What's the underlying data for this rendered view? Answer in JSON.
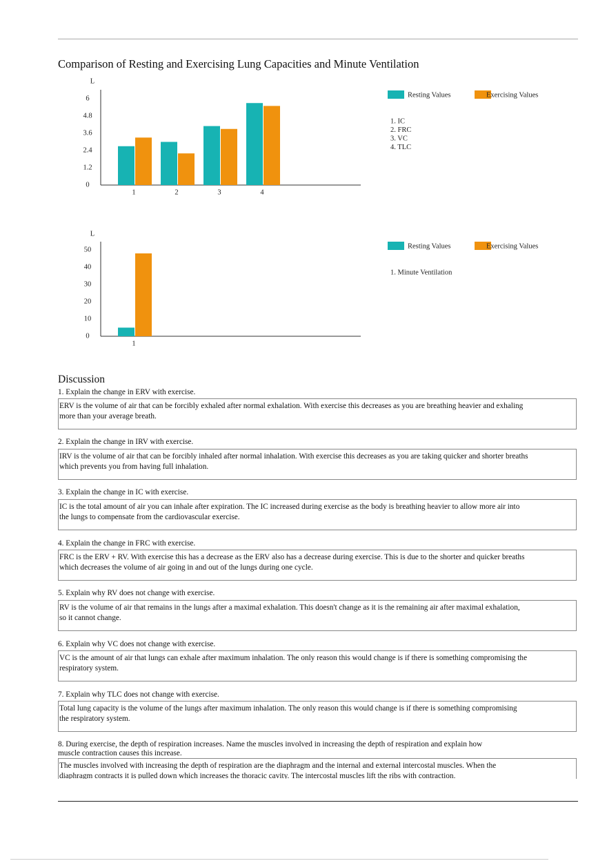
{
  "title": "Comparison of Resting and Exercising Lung Capacities and Minute Ventilation",
  "chart_data": [
    {
      "type": "bar",
      "y_label": "L",
      "categories": [
        "1",
        "2",
        "3",
        "4"
      ],
      "series": [
        {
          "name": "Resting Values",
          "color": "#17b3b3",
          "values": [
            2.7,
            3.0,
            4.1,
            5.7
          ]
        },
        {
          "name": "Exercising Values",
          "color": "#f0920e",
          "values": [
            3.3,
            2.2,
            3.9,
            5.5
          ]
        }
      ],
      "ylim": [
        0,
        6
      ],
      "yticks": [
        0,
        1.2,
        2.4,
        3.6,
        4.8,
        6
      ],
      "key": [
        "1. IC",
        "2. FRC",
        "3. VC",
        "4. TLC"
      ],
      "legend": "top right"
    },
    {
      "type": "bar",
      "y_label": "L",
      "categories": [
        "1"
      ],
      "series": [
        {
          "name": "Resting Values",
          "color": "#17b3b3",
          "values": [
            5
          ]
        },
        {
          "name": "Exercising Values",
          "color": "#f0920e",
          "values": [
            48
          ]
        }
      ],
      "ylim": [
        0,
        50
      ],
      "yticks": [
        0,
        10,
        20,
        30,
        40,
        50
      ],
      "key": [
        "1. Minute Ventilation"
      ],
      "legend": "top right"
    }
  ],
  "discussion": {
    "heading": "Discussion",
    "items": [
      {
        "question": "1. Explain the change in ERV with exercise.",
        "answer": "ERV is the volume of air that can be forcibly exhaled after normal exhalation. With exercise this decreases as you are breathing heavier and exhaling more than your average breath."
      },
      {
        "question": "2. Explain the change in IRV with exercise.",
        "answer": "IRV is the volume of air that can be forcibly inhaled after normal inhalation. With exercise this decreases as you are taking quicker and shorter breaths which prevents you from having full inhalation."
      },
      {
        "question": "3. Explain the change in IC with exercise.",
        "answer": "IC is the total amount of air you can inhale after expiration. The IC increased during exercise as the body is breathing heavier to allow more air into the lungs to compensate from the cardiovascular exercise."
      },
      {
        "question": "4. Explain the change in FRC with exercise.",
        "answer": "FRC is the ERV + RV. With exercise this has a decrease as the ERV also has a decrease during exercise. This is due to the shorter and quicker breaths which decreases the volume of air going in and out of the lungs during one cycle."
      },
      {
        "question": "5. Explain why RV does not change with exercise.",
        "answer": "RV is the volume of air that remains in the lungs after a maximal exhalation. This doesn't change as it is the remaining air after maximal exhalation, so it cannot change."
      },
      {
        "question": "6. Explain why VC does not change with exercise.",
        "answer": "VC is the amount of air that lungs can exhale after maximum inhalation. The only reason this would change is if there is something compromising the respiratory system."
      },
      {
        "question": "7. Explain why TLC does not change with exercise.",
        "answer": "Total lung capacity is the volume of the lungs after maximum inhalation. The only reason this would change is if there is something compromising the respiratory system."
      },
      {
        "question": "8. During exercise, the depth of respiration increases. Name the muscles involved in increasing the depth of respiration and explain how muscle contraction causes this increase.",
        "answer": "The muscles involved with increasing the depth of respiration are the diaphragm and the internal and external intercostal muscles. When the diaphragm contracts it is pulled down which increases the thoracic cavity. The intercostal muscles lift the ribs with contraction."
      }
    ]
  }
}
